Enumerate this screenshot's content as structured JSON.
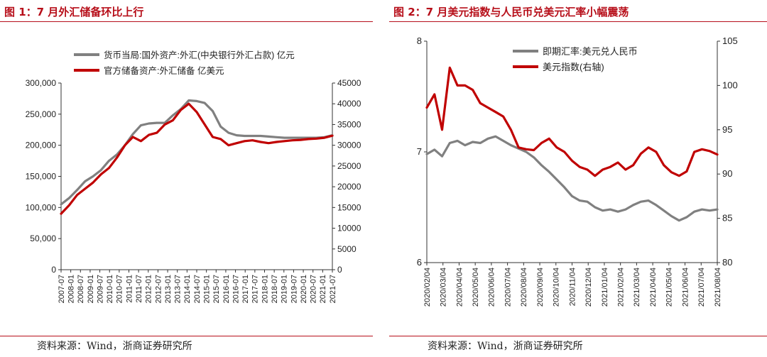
{
  "panel1": {
    "title": "图 1：7 月外汇储备环比上行",
    "source": "资料来源：Wind，浙商证券研究所",
    "chart_data": {
      "type": "line",
      "title": "7 月外汇储备环比上行",
      "legend_position": "top-center",
      "x_ticks": [
        "2007-07",
        "2008-01",
        "2008-07",
        "2009-01",
        "2009-07",
        "2010-01",
        "2010-07",
        "2011-01",
        "2011-07",
        "2012-01",
        "2012-07",
        "2013-01",
        "2013-07",
        "2014-01",
        "2014-07",
        "2015-01",
        "2015-07",
        "2016-01",
        "2016-07",
        "2017-01",
        "2017-07",
        "2018-01",
        "2018-07",
        "2019-01",
        "2019-07",
        "2020-01",
        "2020-07",
        "2021-01",
        "2021-07"
      ],
      "left_axis": {
        "min": 0,
        "max": 300000,
        "ticks": [
          "0",
          "50,000",
          "100,000",
          "150,000",
          "200,000",
          "250,000",
          "300,000"
        ]
      },
      "right_axis": {
        "min": 0,
        "max": 45000,
        "ticks": [
          "0",
          "5000",
          "10000",
          "15000",
          "20000",
          "25000",
          "30000",
          "35000",
          "40000",
          "45000"
        ]
      },
      "series": [
        {
          "name": "货币当局:国外资产:外汇(中央银行外汇占款)  亿元",
          "axis": "left",
          "color": "#808080",
          "values": [
            105000,
            115000,
            128000,
            142000,
            150000,
            160000,
            175000,
            185000,
            200000,
            218000,
            232000,
            235000,
            236000,
            236000,
            248000,
            258000,
            272000,
            271000,
            268000,
            255000,
            230000,
            220000,
            216000,
            215000,
            215000,
            215000,
            214000,
            213000,
            212000,
            212000,
            212000,
            212000,
            212000,
            213000,
            216000
          ]
        },
        {
          "name": "官方储备资产:外汇储备  亿美元",
          "axis": "right",
          "color": "#c00000",
          "values": [
            13500,
            15500,
            18000,
            19500,
            21000,
            23000,
            24500,
            27000,
            30000,
            32000,
            31000,
            32500,
            33000,
            35000,
            36000,
            38500,
            40000,
            38000,
            35000,
            32000,
            31500,
            30000,
            30500,
            31000,
            31200,
            30800,
            30500,
            30800,
            31000,
            31200,
            31300,
            31500,
            31600,
            31800,
            32300
          ]
        }
      ]
    }
  },
  "panel2": {
    "title": "图 2：7 月美元指数与人民币兑美元汇率小幅震荡",
    "source": "资料来源：Wind，浙商证券研究所",
    "chart_data": {
      "type": "line",
      "title": "7 月美元指数与人民币兑美元汇率小幅震荡",
      "legend_position": "top-left",
      "x_ticks": [
        "2020/02/04",
        "2020/03/04",
        "2020/04/04",
        "2020/05/04",
        "2020/06/04",
        "2020/07/04",
        "2020/08/04",
        "2020/09/04",
        "2020/10/04",
        "2020/11/04",
        "2020/12/04",
        "2021/01/04",
        "2021/02/04",
        "2021/03/04",
        "2021/04/04",
        "2021/05/04",
        "2021/06/04",
        "2021/07/04",
        "2021/08/04"
      ],
      "left_axis": {
        "min": 6,
        "max": 8,
        "ticks": [
          "6",
          "7",
          "8"
        ]
      },
      "right_axis": {
        "min": 80,
        "max": 105,
        "ticks": [
          "80",
          "85",
          "90",
          "95",
          "100",
          "105"
        ]
      },
      "series": [
        {
          "name": "即期汇率:美元兑人民币",
          "axis": "left",
          "color": "#808080",
          "values": [
            6.98,
            7.02,
            6.96,
            7.08,
            7.1,
            7.06,
            7.09,
            7.08,
            7.12,
            7.14,
            7.1,
            7.06,
            7.03,
            7.0,
            6.95,
            6.88,
            6.82,
            6.75,
            6.68,
            6.6,
            6.56,
            6.55,
            6.5,
            6.47,
            6.48,
            6.46,
            6.48,
            6.52,
            6.55,
            6.56,
            6.52,
            6.47,
            6.42,
            6.38,
            6.41,
            6.46,
            6.48,
            6.47,
            6.48
          ]
        },
        {
          "name": "美元指数(右轴)",
          "axis": "right",
          "color": "#c00000",
          "values": [
            97.5,
            99.0,
            95.0,
            102.0,
            100.0,
            100.0,
            99.5,
            98.0,
            97.5,
            97.0,
            96.5,
            95.0,
            93.0,
            92.8,
            92.7,
            93.5,
            94.0,
            93.0,
            92.5,
            91.5,
            90.8,
            90.5,
            89.8,
            90.5,
            90.8,
            91.3,
            90.5,
            91.0,
            92.3,
            93.0,
            92.5,
            91.0,
            90.2,
            89.8,
            90.3,
            92.5,
            92.8,
            92.6,
            92.2
          ]
        }
      ]
    }
  }
}
